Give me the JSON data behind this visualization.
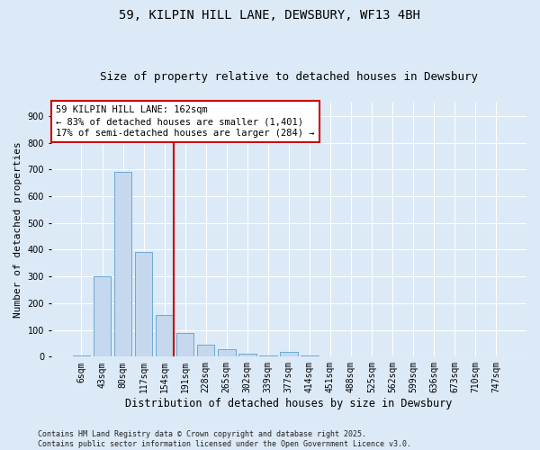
{
  "title": "59, KILPIN HILL LANE, DEWSBURY, WF13 4BH",
  "subtitle": "Size of property relative to detached houses in Dewsbury",
  "xlabel": "Distribution of detached houses by size in Dewsbury",
  "ylabel": "Number of detached properties",
  "bar_color": "#c5d8ee",
  "bar_edge_color": "#6aaad4",
  "background_color": "#dce9f7",
  "grid_color": "#ffffff",
  "categories": [
    "6sqm",
    "43sqm",
    "80sqm",
    "117sqm",
    "154sqm",
    "191sqm",
    "228sqm",
    "265sqm",
    "302sqm",
    "339sqm",
    "377sqm",
    "414sqm",
    "451sqm",
    "488sqm",
    "525sqm",
    "562sqm",
    "599sqm",
    "636sqm",
    "673sqm",
    "710sqm",
    "747sqm"
  ],
  "values": [
    5,
    300,
    690,
    390,
    155,
    90,
    45,
    28,
    10,
    5,
    18,
    5,
    0,
    0,
    0,
    0,
    0,
    0,
    0,
    0,
    0
  ],
  "vline_index": 4,
  "vline_color": "#cc0000",
  "annotation_text": "59 KILPIN HILL LANE: 162sqm\n← 83% of detached houses are smaller (1,401)\n17% of semi-detached houses are larger (284) →",
  "annotation_box_color": "#ffffff",
  "annotation_box_edge_color": "#cc0000",
  "ylim": [
    0,
    950
  ],
  "yticks": [
    0,
    100,
    200,
    300,
    400,
    500,
    600,
    700,
    800,
    900
  ],
  "footer": "Contains HM Land Registry data © Crown copyright and database right 2025.\nContains public sector information licensed under the Open Government Licence v3.0.",
  "title_fontsize": 10,
  "subtitle_fontsize": 9,
  "tick_fontsize": 7,
  "xlabel_fontsize": 8.5,
  "ylabel_fontsize": 8,
  "annotation_fontsize": 7.5,
  "footer_fontsize": 6
}
